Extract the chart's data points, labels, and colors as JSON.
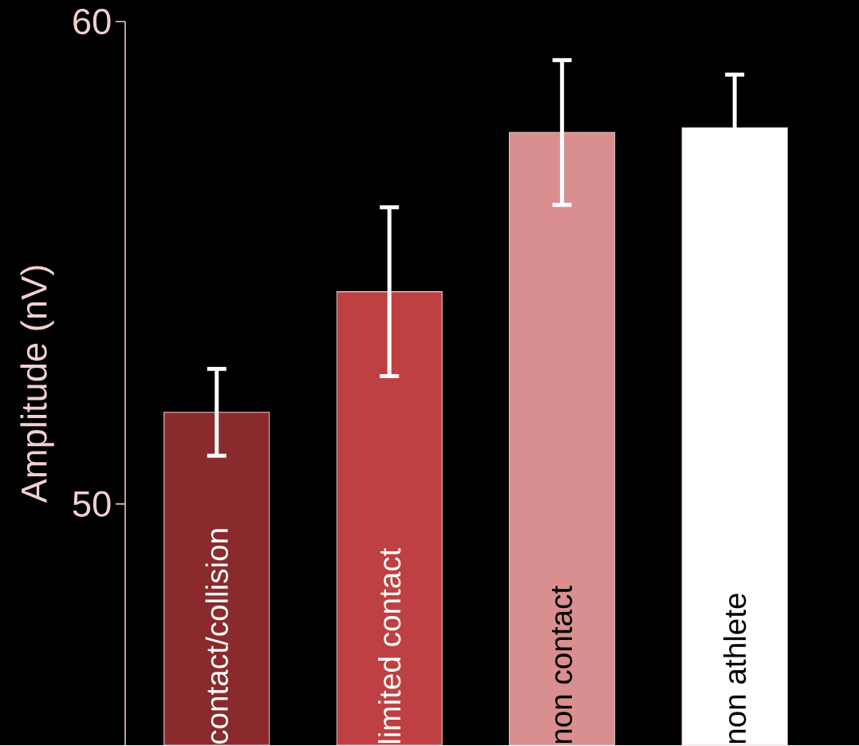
{
  "chart_data": {
    "type": "bar",
    "ylabel": "Amplitude (nV)",
    "categories": [
      "contact/collision",
      "limited contact",
      "non contact",
      "non athlete"
    ],
    "values": [
      51.9,
      54.4,
      57.7,
      57.8
    ],
    "errors": [
      0.9,
      1.75,
      1.5,
      1.1
    ],
    "colors": [
      "#8b2a2c",
      "#bf4042",
      "#d98e90",
      "#ffffff"
    ],
    "ylim": [
      45,
      60
    ],
    "yticks": [
      50,
      60
    ],
    "grid": false
  }
}
